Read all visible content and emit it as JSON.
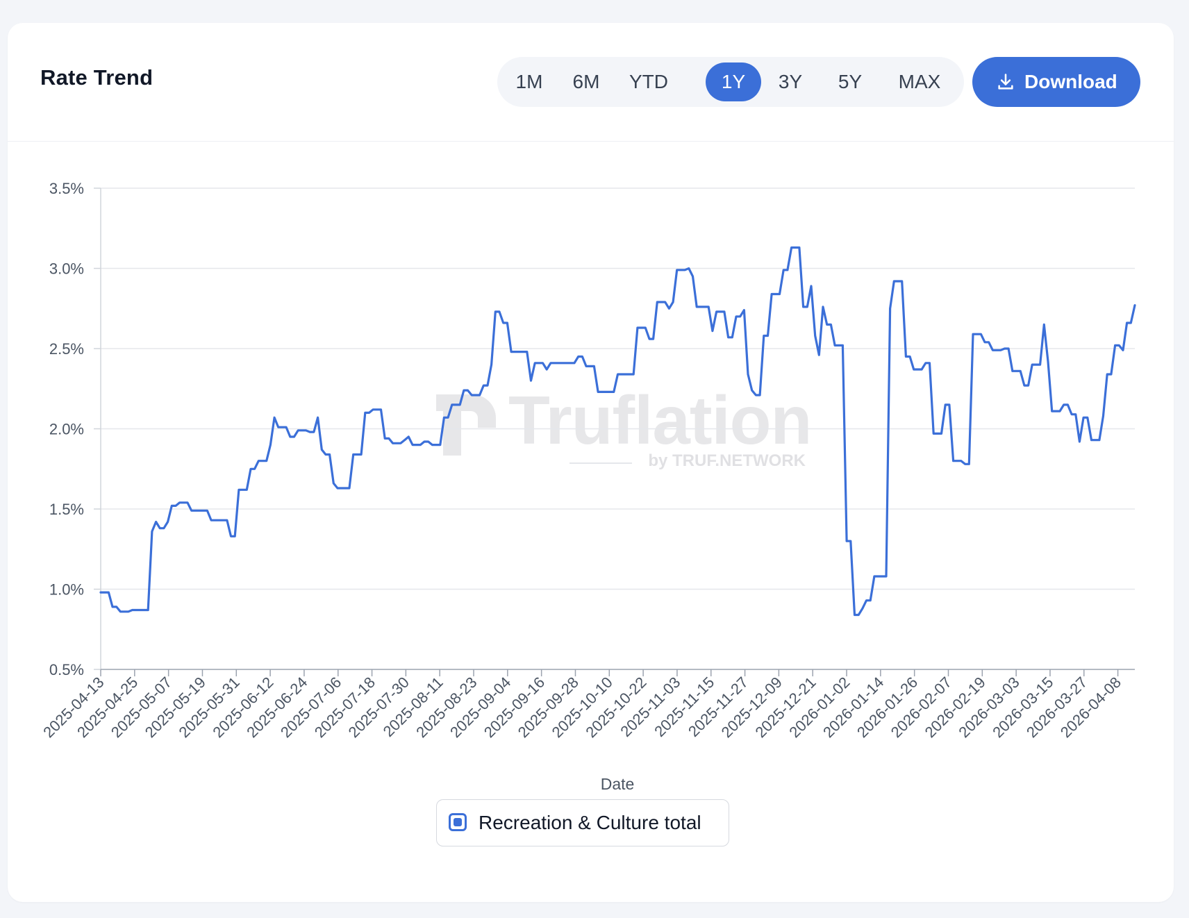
{
  "header": {
    "title": "Rate Trend",
    "ranges": [
      "1M",
      "6M",
      "YTD",
      "1Y",
      "3Y",
      "5Y",
      "MAX"
    ],
    "active_range": "1Y",
    "download_label": "Download"
  },
  "watermark": {
    "brand": "Truflation",
    "tagline": "by TRUF.NETWORK"
  },
  "colors": {
    "accent": "#3b6fd8",
    "line": "#3b6fd8",
    "grid": "#e5e7eb",
    "text": "#111827",
    "muted": "#4b5563"
  },
  "chart_data": {
    "type": "line",
    "title": "",
    "xlabel": "Date",
    "ylabel": "",
    "ylim": [
      0.5,
      3.5
    ],
    "yticks": [
      0.5,
      1.0,
      1.5,
      2.0,
      2.5,
      3.0,
      3.5
    ],
    "ytick_labels": [
      "0.5%",
      "1.0%",
      "1.5%",
      "2.0%",
      "2.5%",
      "3.0%",
      "3.5%"
    ],
    "xticks": [
      "2025-04-13",
      "2025-04-25",
      "2025-05-07",
      "2025-05-19",
      "2025-05-31",
      "2025-06-12",
      "2025-06-24",
      "2025-07-06",
      "2025-07-18",
      "2025-07-30",
      "2025-08-11",
      "2025-08-23",
      "2025-09-04",
      "2025-09-16",
      "2025-09-28",
      "2025-10-10",
      "2025-10-22",
      "2025-11-03",
      "2025-11-15",
      "2025-11-27",
      "2025-12-09",
      "2025-12-21",
      "2026-01-02",
      "2026-01-14",
      "2026-01-26",
      "2026-02-07",
      "2026-02-19",
      "2026-03-03",
      "2026-03-15",
      "2026-03-27",
      "2026-04-08"
    ],
    "x_start": "2025-04-13",
    "grid": true,
    "legend": "bottom-center",
    "series": [
      {
        "name": "Recreation & Culture total",
        "values": [
          0.98,
          0.98,
          0.98,
          0.89,
          0.89,
          0.86,
          0.86,
          0.86,
          0.87,
          0.87,
          0.87,
          0.87,
          0.87,
          1.36,
          1.42,
          1.38,
          1.38,
          1.42,
          1.52,
          1.52,
          1.54,
          1.54,
          1.54,
          1.49,
          1.49,
          1.49,
          1.49,
          1.49,
          1.43,
          1.43,
          1.43,
          1.43,
          1.43,
          1.33,
          1.33,
          1.62,
          1.62,
          1.62,
          1.75,
          1.75,
          1.8,
          1.8,
          1.8,
          1.9,
          2.07,
          2.01,
          2.01,
          2.01,
          1.95,
          1.95,
          1.99,
          1.99,
          1.99,
          1.98,
          1.98,
          2.07,
          1.87,
          1.84,
          1.84,
          1.66,
          1.63,
          1.63,
          1.63,
          1.63,
          1.84,
          1.84,
          1.84,
          2.1,
          2.1,
          2.12,
          2.12,
          2.12,
          1.94,
          1.94,
          1.91,
          1.91,
          1.91,
          1.93,
          1.95,
          1.9,
          1.9,
          1.9,
          1.92,
          1.92,
          1.9,
          1.9,
          1.9,
          2.07,
          2.07,
          2.15,
          2.15,
          2.15,
          2.24,
          2.24,
          2.21,
          2.21,
          2.21,
          2.27,
          2.27,
          2.4,
          2.73,
          2.73,
          2.66,
          2.66,
          2.48,
          2.48,
          2.48,
          2.48,
          2.48,
          2.3,
          2.41,
          2.41,
          2.41,
          2.37,
          2.41,
          2.41,
          2.41,
          2.41,
          2.41,
          2.41,
          2.41,
          2.45,
          2.45,
          2.39,
          2.39,
          2.39,
          2.23,
          2.23,
          2.23,
          2.23,
          2.23,
          2.34,
          2.34,
          2.34,
          2.34,
          2.34,
          2.63,
          2.63,
          2.63,
          2.56,
          2.56,
          2.79,
          2.79,
          2.79,
          2.75,
          2.79,
          2.99,
          2.99,
          2.99,
          3.0,
          2.95,
          2.76,
          2.76,
          2.76,
          2.76,
          2.61,
          2.73,
          2.73,
          2.73,
          2.57,
          2.57,
          2.7,
          2.7,
          2.74,
          2.34,
          2.24,
          2.21,
          2.21,
          2.58,
          2.58,
          2.84,
          2.84,
          2.84,
          2.99,
          2.99,
          3.13,
          3.13,
          3.13,
          2.76,
          2.76,
          2.89,
          2.58,
          2.46,
          2.76,
          2.65,
          2.65,
          2.52,
          2.52,
          2.52,
          1.3,
          1.3,
          0.84,
          0.84,
          0.88,
          0.93,
          0.93,
          1.08,
          1.08,
          1.08,
          1.08,
          2.75,
          2.92,
          2.92,
          2.92,
          2.45,
          2.45,
          2.37,
          2.37,
          2.37,
          2.41,
          2.41,
          1.97,
          1.97,
          1.97,
          2.15,
          2.15,
          1.8,
          1.8,
          1.8,
          1.78,
          1.78,
          2.59,
          2.59,
          2.59,
          2.54,
          2.54,
          2.49,
          2.49,
          2.49,
          2.5,
          2.5,
          2.36,
          2.36,
          2.36,
          2.27,
          2.27,
          2.4,
          2.4,
          2.4,
          2.65,
          2.42,
          2.11,
          2.11,
          2.11,
          2.15,
          2.15,
          2.09,
          2.09,
          1.92,
          2.07,
          2.07,
          1.93,
          1.93,
          1.93,
          2.08,
          2.34,
          2.34,
          2.52,
          2.52,
          2.49,
          2.66,
          2.66,
          2.77
        ]
      }
    ]
  }
}
